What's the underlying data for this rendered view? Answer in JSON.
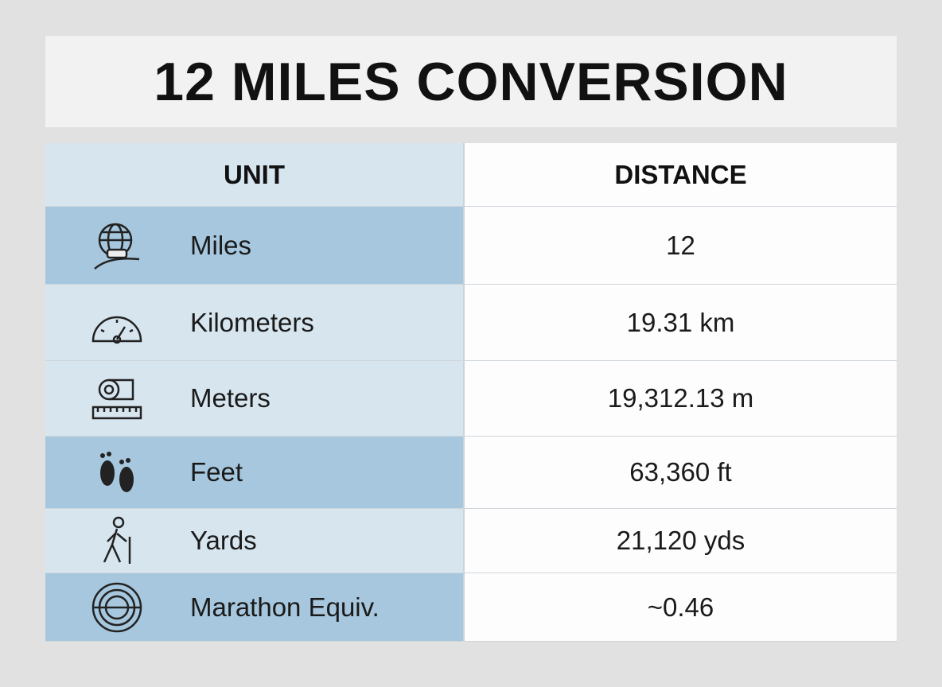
{
  "title": "12 MILES CONVERSION",
  "table": {
    "headers": [
      "UNIT",
      "DISTANCE"
    ],
    "rows": [
      [
        "Miles",
        "12"
      ],
      [
        "Kilometers",
        "19.31 km"
      ],
      [
        "Meters",
        "19,312.13 m"
      ],
      [
        "Feet",
        "63,360 ft"
      ],
      [
        "Yards",
        "21,120 yds"
      ],
      [
        "Marathon Equiv.",
        "~0.46"
      ]
    ]
  }
}
